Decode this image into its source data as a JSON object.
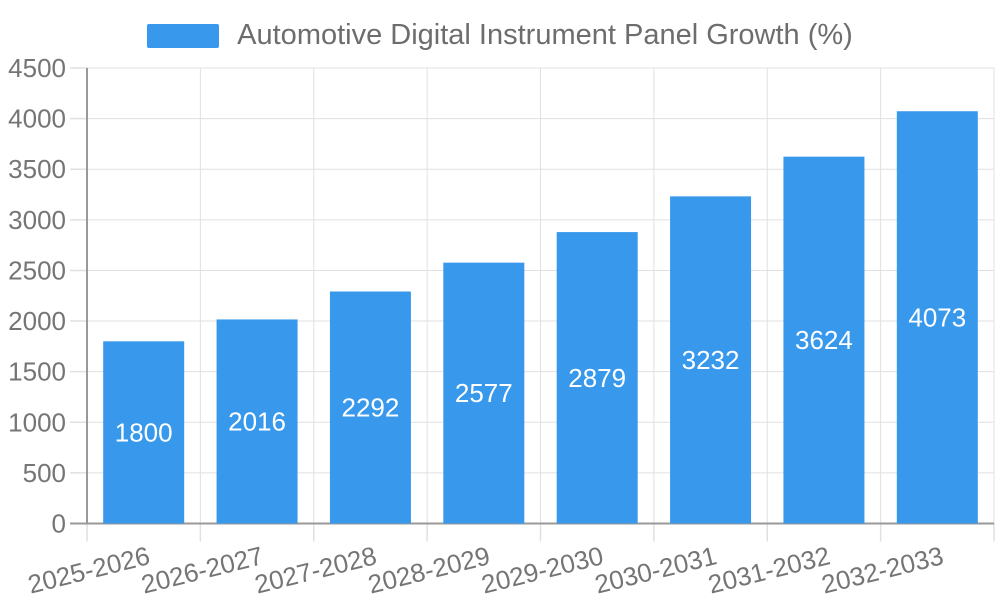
{
  "chart_data": {
    "type": "bar",
    "title": "Automotive Digital Instrument Panel Growth (%)",
    "categories": [
      "2025-2026",
      "2026-2027",
      "2027-2028",
      "2028-2029",
      "2029-2030",
      "2030-2031",
      "2031-2032",
      "2032-2033"
    ],
    "values": [
      1800,
      2016,
      2292,
      2577,
      2879,
      3232,
      3624,
      4073
    ],
    "xlabel": "",
    "ylabel": "",
    "ylim": [
      0,
      4500
    ],
    "ytick_step": 500,
    "grid": true,
    "legend_position": "top",
    "bar_color": "#3899ec",
    "bar_label_color": "#ffffff",
    "axis_text_color": "#757575",
    "title_color": "#6d6d6d",
    "axis_line_color": "#999999",
    "grid_color": "#e0e0e0",
    "background_color": "#ffffff"
  }
}
